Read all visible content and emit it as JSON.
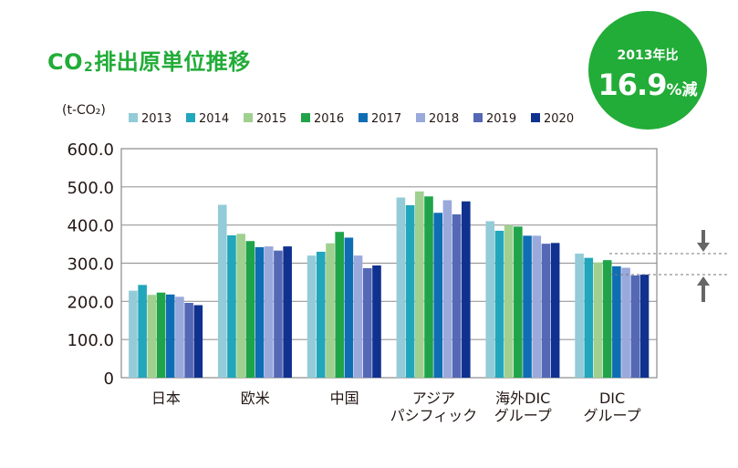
{
  "title": {
    "prefix": "CO",
    "subscript": "2",
    "suffix": "排出原単位推移"
  },
  "badge": {
    "line1": "2013年比",
    "value": "16.9",
    "unit": "%減"
  },
  "colors": {
    "title": "#22ac38",
    "badge": "#22ac38",
    "series": [
      "#93cbd8",
      "#22a6bb",
      "#9fd08f",
      "#1fa44a",
      "#0f6db4",
      "#99a9dc",
      "#5468b6",
      "#10318f"
    ],
    "arrow": "#666666",
    "reference": "#777777"
  },
  "chart_data": {
    "type": "bar",
    "ylabel": "(t-CO₂)",
    "ylim": [
      0,
      600
    ],
    "yticks": [
      "600.0",
      "500.0",
      "400.0",
      "300.0",
      "200.0",
      "100.0",
      "0"
    ],
    "ytick_values": [
      600,
      500,
      400,
      300,
      200,
      100,
      0
    ],
    "grid": true,
    "legend_position": "top",
    "categories": [
      [
        "日本"
      ],
      [
        "欧米"
      ],
      [
        "中国"
      ],
      [
        "アジア",
        "パシフィック"
      ],
      [
        "海外DIC",
        "グループ"
      ],
      [
        "DIC",
        "グループ"
      ]
    ],
    "series": [
      {
        "name": "2013",
        "values": [
          228,
          453,
          320,
          472,
          410,
          325
        ]
      },
      {
        "name": "2014",
        "values": [
          243,
          373,
          330,
          452,
          385,
          314
        ]
      },
      {
        "name": "2015",
        "values": [
          217,
          377,
          352,
          488,
          400,
          302
        ]
      },
      {
        "name": "2016",
        "values": [
          223,
          358,
          382,
          475,
          396,
          308
        ]
      },
      {
        "name": "2017",
        "values": [
          218,
          342,
          367,
          432,
          372,
          292
        ]
      },
      {
        "name": "2018",
        "values": [
          212,
          344,
          320,
          465,
          372,
          288
        ]
      },
      {
        "name": "2019",
        "values": [
          196,
          333,
          287,
          428,
          351,
          268
        ]
      },
      {
        "name": "2020",
        "values": [
          190,
          344,
          294,
          462,
          353,
          270
        ]
      }
    ],
    "reference_levels": [
      325,
      270
    ]
  }
}
